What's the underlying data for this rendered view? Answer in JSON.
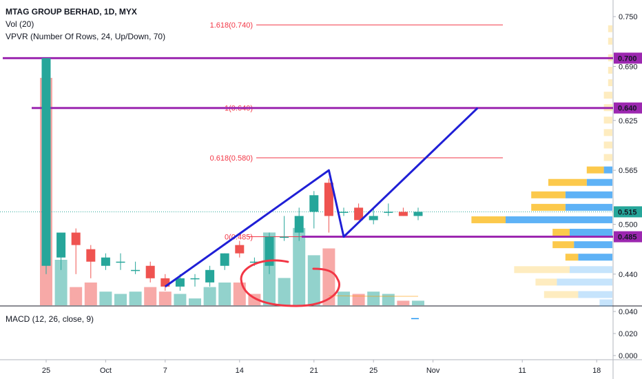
{
  "header": {
    "title": "MTAG GROUP BERHAD, 1D, MYX",
    "vol_label": "Vol (20)",
    "vpvr_label": "VPVR (Number Of Rows, 24, Up/Down, 70)",
    "macd_label": "MACD (12, 26, close, 9)"
  },
  "colors": {
    "up": "#26a69a",
    "down": "#ef5350",
    "pattern_line": "#1f1fd6",
    "level_line": "#9c27b0",
    "fib_line": "#f23645",
    "ellipse": "#f23645",
    "vp_up": "#42a5f5",
    "vp_down": "#fbc02d"
  },
  "chart_data": {
    "type": "candlestick",
    "y_axis": {
      "range": [
        0.405,
        0.77
      ],
      "ticks": [
        0.75,
        0.69,
        0.625,
        0.565,
        0.5,
        0.44
      ]
    },
    "price_labels": [
      {
        "value": 0.7,
        "text": "0.700",
        "bg": "#9c27b0"
      },
      {
        "value": 0.64,
        "text": "0.640",
        "bg": "#9c27b0"
      },
      {
        "value": 0.515,
        "text": "0.515",
        "bg": "#26a69a"
      },
      {
        "value": 0.485,
        "text": "0.485",
        "bg": "#9c27b0"
      }
    ],
    "x_ticks": [
      {
        "label": "25",
        "i": 0
      },
      {
        "label": "Oct",
        "i": 4
      },
      {
        "label": "7",
        "i": 8
      },
      {
        "label": "14",
        "i": 13
      },
      {
        "label": "21",
        "i": 18
      },
      {
        "label": "25",
        "i": 22
      },
      {
        "label": "Nov",
        "i": 26
      },
      {
        "label": "11",
        "i": 32
      },
      {
        "label": "18",
        "i": 37
      }
    ],
    "candles": [
      {
        "o": 0.45,
        "h": 0.7,
        "l": 0.44,
        "c": 0.7
      },
      {
        "o": 0.46,
        "h": 0.49,
        "l": 0.445,
        "c": 0.49
      },
      {
        "o": 0.49,
        "h": 0.495,
        "l": 0.44,
        "c": 0.475
      },
      {
        "o": 0.47,
        "h": 0.475,
        "l": 0.435,
        "c": 0.455
      },
      {
        "o": 0.45,
        "h": 0.465,
        "l": 0.445,
        "c": 0.46
      },
      {
        "o": 0.455,
        "h": 0.465,
        "l": 0.445,
        "c": 0.455
      },
      {
        "o": 0.445,
        "h": 0.455,
        "l": 0.44,
        "c": 0.445
      },
      {
        "o": 0.45,
        "h": 0.455,
        "l": 0.43,
        "c": 0.435
      },
      {
        "o": 0.435,
        "h": 0.44,
        "l": 0.42,
        "c": 0.425
      },
      {
        "o": 0.425,
        "h": 0.44,
        "l": 0.42,
        "c": 0.435
      },
      {
        "o": 0.435,
        "h": 0.44,
        "l": 0.425,
        "c": 0.435
      },
      {
        "o": 0.43,
        "h": 0.45,
        "l": 0.425,
        "c": 0.445
      },
      {
        "o": 0.45,
        "h": 0.465,
        "l": 0.445,
        "c": 0.465
      },
      {
        "o": 0.475,
        "h": 0.48,
        "l": 0.46,
        "c": 0.465
      },
      {
        "o": 0.455,
        "h": 0.46,
        "l": 0.45,
        "c": 0.455
      },
      {
        "o": 0.45,
        "h": 0.49,
        "l": 0.44,
        "c": 0.485
      },
      {
        "o": 0.485,
        "h": 0.51,
        "l": 0.48,
        "c": 0.485
      },
      {
        "o": 0.49,
        "h": 0.52,
        "l": 0.48,
        "c": 0.51
      },
      {
        "o": 0.515,
        "h": 0.54,
        "l": 0.495,
        "c": 0.535
      },
      {
        "o": 0.55,
        "h": 0.555,
        "l": 0.49,
        "c": 0.51
      },
      {
        "o": 0.515,
        "h": 0.52,
        "l": 0.51,
        "c": 0.515
      },
      {
        "o": 0.52,
        "h": 0.525,
        "l": 0.505,
        "c": 0.505
      },
      {
        "o": 0.505,
        "h": 0.52,
        "l": 0.5,
        "c": 0.51
      },
      {
        "o": 0.515,
        "h": 0.525,
        "l": 0.51,
        "c": 0.515
      },
      {
        "o": 0.515,
        "h": 0.52,
        "l": 0.51,
        "c": 0.51
      },
      {
        "o": 0.51,
        "h": 0.52,
        "l": 0.505,
        "c": 0.515
      }
    ],
    "volume": [
      {
        "v": 100,
        "dir": "down"
      },
      {
        "v": 20,
        "dir": "up"
      },
      {
        "v": 8,
        "dir": "down"
      },
      {
        "v": 10,
        "dir": "down"
      },
      {
        "v": 6,
        "dir": "up"
      },
      {
        "v": 5,
        "dir": "up"
      },
      {
        "v": 6,
        "dir": "up"
      },
      {
        "v": 8,
        "dir": "down"
      },
      {
        "v": 6,
        "dir": "down"
      },
      {
        "v": 5,
        "dir": "up"
      },
      {
        "v": 3,
        "dir": "up"
      },
      {
        "v": 8,
        "dir": "up"
      },
      {
        "v": 10,
        "dir": "up"
      },
      {
        "v": 10,
        "dir": "down"
      },
      {
        "v": 5,
        "dir": "down"
      },
      {
        "v": 32,
        "dir": "up"
      },
      {
        "v": 12,
        "dir": "up"
      },
      {
        "v": 34,
        "dir": "up"
      },
      {
        "v": 22,
        "dir": "up"
      },
      {
        "v": 25,
        "dir": "down"
      },
      {
        "v": 6,
        "dir": "up"
      },
      {
        "v": 5,
        "dir": "down"
      },
      {
        "v": 6,
        "dir": "up"
      },
      {
        "v": 5,
        "dir": "up"
      },
      {
        "v": 2,
        "dir": "down"
      },
      {
        "v": 2,
        "dir": "up"
      }
    ],
    "horizontal_levels": [
      {
        "value": 0.7,
        "kind": "level"
      },
      {
        "value": 0.64,
        "kind": "level"
      },
      {
        "value": 0.485,
        "kind": "level"
      }
    ],
    "fib_levels": [
      {
        "value": 0.74,
        "label": "1.618(0.740)"
      },
      {
        "value": 0.64,
        "label": "1(0.640)"
      },
      {
        "value": 0.58,
        "label": "0.618(0.580)"
      },
      {
        "value": 0.485,
        "label": "0(0.485)"
      }
    ],
    "pattern": [
      {
        "i": 8,
        "p": 0.425
      },
      {
        "i": 19,
        "p": 0.565
      },
      {
        "i": 20,
        "p": 0.485
      },
      {
        "i": 29,
        "p": 0.64
      }
    ],
    "volume_profile": [
      {
        "p": 0.735,
        "up": 0,
        "down": 1
      },
      {
        "p": 0.72,
        "up": 0,
        "down": 1
      },
      {
        "p": 0.7,
        "up": 0,
        "down": 1
      },
      {
        "p": 0.685,
        "up": 0,
        "down": 1
      },
      {
        "p": 0.67,
        "up": 0,
        "down": 1
      },
      {
        "p": 0.655,
        "up": 0,
        "down": 2
      },
      {
        "p": 0.64,
        "up": 0,
        "down": 2
      },
      {
        "p": 0.625,
        "up": 0,
        "down": 2
      },
      {
        "p": 0.61,
        "up": 0,
        "down": 2
      },
      {
        "p": 0.595,
        "up": 0,
        "down": 2
      },
      {
        "p": 0.58,
        "up": 0,
        "down": 2
      },
      {
        "p": 0.565,
        "up": 2,
        "down": 4
      },
      {
        "p": 0.55,
        "up": 6,
        "down": 9
      },
      {
        "p": 0.535,
        "up": 11,
        "down": 8
      },
      {
        "p": 0.52,
        "up": 11,
        "down": 8
      },
      {
        "p": 0.505,
        "up": 25,
        "down": 8
      },
      {
        "p": 0.49,
        "up": 10,
        "down": 4
      },
      {
        "p": 0.475,
        "up": 9,
        "down": 5
      },
      {
        "p": 0.46,
        "up": 8,
        "down": 3
      },
      {
        "p": 0.445,
        "up": 10,
        "down": 13
      },
      {
        "p": 0.43,
        "up": 13,
        "down": 5
      },
      {
        "p": 0.415,
        "up": 8,
        "down": 8
      },
      {
        "p": 0.405,
        "up": 3,
        "down": 0
      }
    ],
    "macd_axis_ticks": [
      {
        "value": 0.04,
        "text": "0.040"
      },
      {
        "value": 0.02,
        "text": "0.020"
      },
      {
        "value": 0.0,
        "text": "0.000"
      }
    ]
  }
}
